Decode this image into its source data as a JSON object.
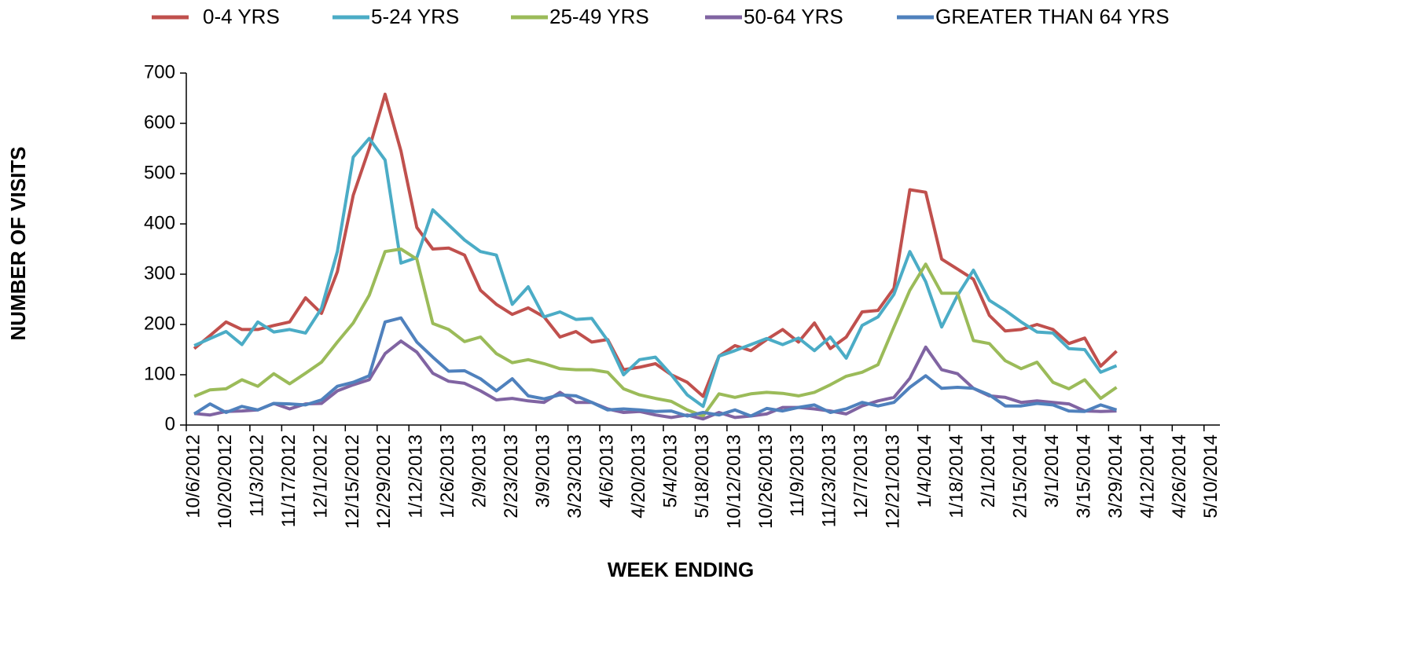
{
  "chart_data": {
    "type": "line",
    "y_label": "NUMBER OF VISITS",
    "x_label": "WEEK ENDING",
    "categories": [
      "10/6/2012",
      null,
      "10/20/2012",
      null,
      "11/3/2012",
      null,
      "11/17/2012",
      null,
      "12/1/2012",
      null,
      "12/15/2012",
      null,
      "12/29/2012",
      null,
      "1/12/2013",
      null,
      "1/26/2013",
      null,
      "2/9/2013",
      null,
      "2/23/2013",
      null,
      "3/9/2013",
      null,
      "3/23/2013",
      null,
      "4/6/2013",
      null,
      "4/20/2013",
      null,
      "5/4/2013",
      null,
      "5/18/2013",
      null,
      "10/12/2013",
      null,
      "10/26/2013",
      null,
      "11/9/2013",
      null,
      "11/23/2013",
      null,
      "12/7/2013",
      null,
      "12/21/2013",
      null,
      "1/4/2014",
      null,
      "1/18/2014",
      null,
      "2/1/2014",
      null,
      "2/15/2014",
      null,
      "3/1/2014",
      null,
      "3/15/2014",
      null,
      "3/29/2014",
      null,
      "4/12/2014",
      null,
      "4/26/2014",
      null,
      "5/10/2014"
    ],
    "series": [
      {
        "name": "0-4 YRS",
        "color": "#c0504d",
        "values": [
          152,
          178,
          205,
          190,
          190,
          198,
          205,
          253,
          222,
          305,
          457,
          550,
          658,
          545,
          393,
          350,
          352,
          338,
          268,
          240,
          220,
          233,
          215,
          175,
          186,
          165,
          170,
          110,
          115,
          122,
          100,
          85,
          57,
          137,
          158,
          148,
          170,
          190,
          165,
          203,
          152,
          175,
          225,
          228,
          272,
          468,
          463,
          330,
          310,
          290,
          218,
          187,
          190,
          200,
          190,
          162,
          173,
          117,
          147,
          null,
          null,
          null,
          null,
          null,
          null
        ]
      },
      {
        "name": "5-24 YRS",
        "color": "#4bacc6",
        "values": [
          158,
          172,
          186,
          160,
          205,
          185,
          190,
          183,
          232,
          345,
          533,
          570,
          527,
          322,
          333,
          428,
          398,
          368,
          345,
          338,
          240,
          275,
          215,
          225,
          210,
          212,
          168,
          100,
          130,
          135,
          100,
          60,
          37,
          137,
          148,
          160,
          172,
          160,
          173,
          148,
          175,
          133,
          198,
          215,
          260,
          345,
          285,
          195,
          258,
          308,
          248,
          228,
          205,
          185,
          183,
          152,
          150,
          105,
          118,
          null,
          null,
          null,
          null,
          null,
          null
        ]
      },
      {
        "name": "25-49 YRS",
        "color": "#9bbb59",
        "values": [
          57,
          70,
          72,
          90,
          77,
          102,
          82,
          103,
          125,
          165,
          203,
          258,
          345,
          350,
          330,
          202,
          190,
          166,
          175,
          142,
          124,
          130,
          122,
          112,
          110,
          110,
          105,
          72,
          60,
          53,
          47,
          30,
          18,
          62,
          55,
          62,
          65,
          63,
          58,
          65,
          80,
          97,
          105,
          120,
          195,
          268,
          320,
          262,
          262,
          168,
          162,
          128,
          112,
          125,
          85,
          72,
          90,
          53,
          75,
          null,
          null,
          null,
          null,
          null,
          null
        ]
      },
      {
        "name": "50-64 YRS",
        "color": "#8064a2",
        "values": [
          23,
          20,
          27,
          28,
          30,
          43,
          32,
          42,
          43,
          68,
          80,
          90,
          142,
          167,
          145,
          103,
          87,
          83,
          68,
          50,
          53,
          48,
          45,
          65,
          45,
          45,
          32,
          25,
          27,
          20,
          15,
          20,
          12,
          25,
          15,
          18,
          22,
          35,
          35,
          32,
          28,
          22,
          38,
          48,
          55,
          93,
          155,
          110,
          102,
          73,
          58,
          55,
          45,
          48,
          45,
          42,
          28,
          27,
          28,
          null,
          null,
          null,
          null,
          null,
          null
        ]
      },
      {
        "name": "GREATER THAN 64 YRS",
        "color": "#4f81bd",
        "values": [
          22,
          42,
          25,
          37,
          30,
          43,
          42,
          40,
          50,
          77,
          85,
          98,
          205,
          213,
          165,
          135,
          107,
          108,
          92,
          68,
          92,
          58,
          52,
          60,
          58,
          45,
          30,
          32,
          30,
          27,
          28,
          18,
          25,
          20,
          30,
          18,
          33,
          28,
          35,
          40,
          25,
          32,
          45,
          38,
          45,
          75,
          98,
          73,
          75,
          73,
          60,
          38,
          38,
          43,
          40,
          28,
          27,
          40,
          30,
          null,
          null,
          null,
          null,
          null,
          null
        ]
      }
    ],
    "ylim": [
      0,
      700
    ],
    "yticks": [
      0,
      100,
      200,
      300,
      400,
      500,
      600,
      700
    ],
    "grid": false
  }
}
